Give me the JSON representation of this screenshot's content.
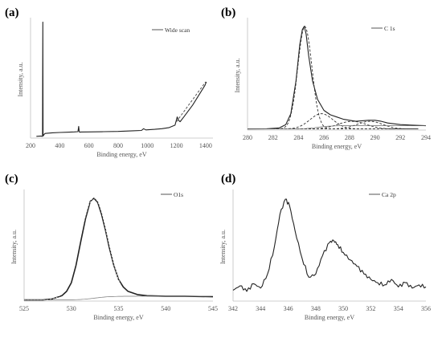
{
  "chart_data": [
    {
      "panel": "(a)",
      "type": "line",
      "xlabel": "Binding  energy,  eV",
      "ylabel": "Intensity,  a.u.",
      "xlim": [
        200,
        1450
      ],
      "ylim": [
        0,
        100
      ],
      "xticks": [
        "200",
        "400",
        "600",
        "800",
        "1000",
        "1200",
        "1400"
      ],
      "legend": "Wide scan",
      "series": [
        {
          "name": "Wide scan",
          "x": [
            240,
            270,
            282,
            284,
            286,
            288,
            292,
            300,
            350,
            400,
            450,
            500,
            525,
            530,
            533,
            536,
            545,
            600,
            700,
            800,
            900,
            960,
            975,
            990,
            1050,
            1100,
            1150,
            1190,
            1205,
            1215,
            1225,
            1250,
            1280,
            1310,
            1340,
            1370,
            1395,
            1405
          ],
          "y": [
            1.5,
            1.8,
            1.5,
            99,
            3,
            2,
            3,
            4,
            4.5,
            4.8,
            5,
            5.3,
            5.5,
            10,
            6,
            5,
            5.2,
            5.3,
            5.5,
            5.7,
            6.2,
            6.5,
            8,
            7,
            7.5,
            8,
            9,
            11,
            18,
            15,
            14,
            18,
            23,
            28,
            34,
            40,
            45,
            48
          ]
        }
      ]
    },
    {
      "panel": "(b)",
      "type": "line",
      "xlabel": "Binding  energy,  eV",
      "ylabel": "Intensity,  a.u.",
      "xlim": [
        280,
        294
      ],
      "ylim": [
        0,
        100
      ],
      "xticks": [
        "280",
        "282",
        "284",
        "286",
        "288",
        "290",
        "292",
        "294"
      ],
      "legend": "C 1s",
      "series": [
        {
          "name": "C 1s",
          "x": [
            280,
            281.5,
            282.5,
            283.0,
            283.4,
            283.8,
            284.1,
            284.3,
            284.45,
            284.6,
            284.8,
            285.1,
            285.5,
            286.0,
            286.5,
            287.0,
            287.5,
            288.0,
            288.5,
            289.0,
            289.5,
            290.0,
            290.5,
            291.0,
            292.0,
            293.0,
            294.0
          ],
          "y": [
            1,
            1.2,
            2,
            5,
            15,
            45,
            78,
            92,
            95,
            88,
            68,
            45,
            28,
            18,
            14,
            12,
            10,
            9,
            8,
            8.5,
            9,
            9,
            8,
            6.5,
            5,
            4.5,
            4
          ]
        }
      ]
    },
    {
      "panel": "(c)",
      "type": "line",
      "xlabel": "Binding  energy,  eV",
      "ylabel": "Intensity,  a.u.",
      "xlim": [
        525,
        545
      ],
      "ylim": [
        0,
        100
      ],
      "xticks": [
        "525",
        "530",
        "535",
        "540",
        "545"
      ],
      "legend": "O1s",
      "series": [
        {
          "name": "O1s",
          "x": [
            525,
            527,
            528,
            529,
            529.5,
            530,
            530.5,
            531,
            531.5,
            532,
            532.4,
            532.8,
            533.2,
            533.6,
            534,
            534.5,
            535,
            535.5,
            536,
            537,
            538,
            540,
            542,
            545
          ],
          "y": [
            1,
            1,
            2,
            5,
            9,
            17,
            33,
            55,
            76,
            92,
            95,
            91,
            80,
            66,
            50,
            33,
            20,
            13,
            9,
            6,
            5,
            4.5,
            4.5,
            4
          ]
        }
      ]
    },
    {
      "panel": "(d)",
      "type": "line",
      "xlabel": "Binding  energy,  eV",
      "ylabel": "Intensity,  a.u.",
      "xlim": [
        342,
        356
      ],
      "ylim": [
        0,
        100
      ],
      "xticks": [
        "342",
        "344",
        "346",
        "348",
        "350",
        "352",
        "354",
        "356"
      ],
      "legend": "Ca 2p",
      "series": [
        {
          "name": "Ca 2p",
          "x": [
            342,
            342.5,
            343,
            343.5,
            344,
            344.5,
            345,
            345.4,
            345.8,
            346.1,
            346.5,
            347,
            347.5,
            348,
            348.5,
            349,
            349.3,
            349.6,
            350,
            350.5,
            351,
            351.5,
            352,
            352.5,
            353,
            353.5,
            354,
            354.5,
            355,
            355.5,
            356
          ],
          "y": [
            10,
            14,
            9,
            16,
            12,
            25,
            50,
            80,
            94,
            88,
            65,
            40,
            22,
            25,
            42,
            54,
            56,
            52,
            45,
            38,
            32,
            25,
            20,
            17,
            15,
            20,
            13,
            17,
            12,
            15,
            13
          ]
        }
      ]
    }
  ]
}
